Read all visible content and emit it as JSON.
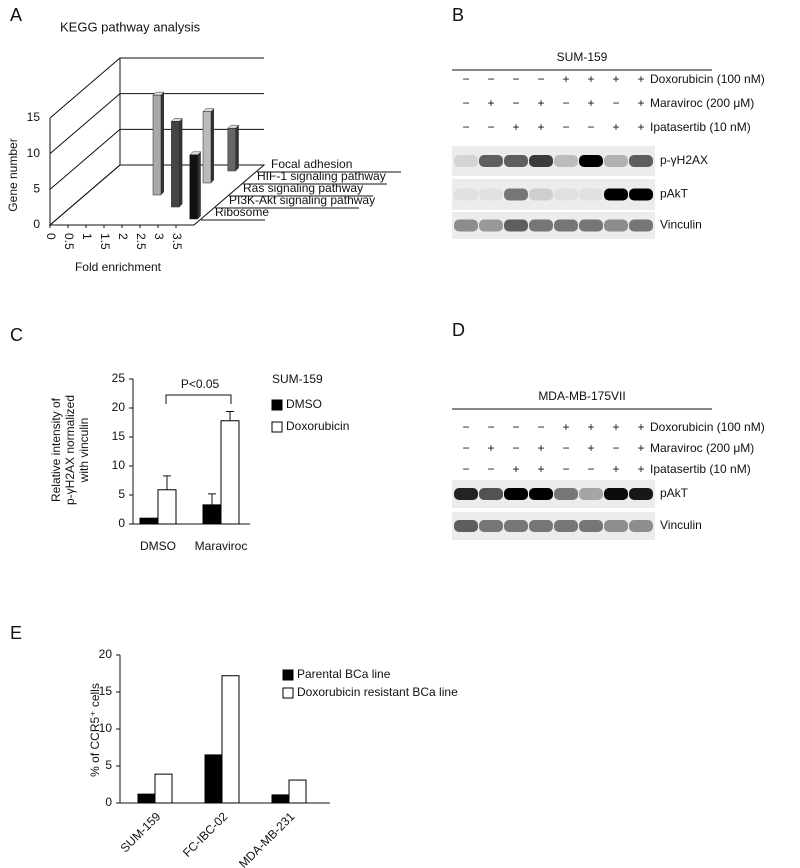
{
  "panel_labels": [
    "A",
    "B",
    "C",
    "D",
    "E"
  ],
  "chart_data": [
    {
      "type": "bar3d",
      "title": "KEGG pathway analysis",
      "x_label": "Fold enrichment",
      "y_label": "Gene number",
      "categories": [
        "Ribosome",
        "PI3K-Akt signaling pathway",
        "Ras signaling pathway",
        "HIF-1 signaling pathway",
        "Focal adhesion"
      ],
      "x": [
        3.8,
        2.9,
        2.0,
        3.0,
        3.3
      ],
      "values": [
        9,
        12,
        14,
        10,
        6
      ],
      "colors": [
        "#111111",
        "#444444",
        "#aaaaaa",
        "#bbbbbb",
        "#666666"
      ],
      "xlim": [
        0,
        4
      ],
      "xticks": [
        0,
        0.5,
        1,
        1.5,
        2,
        2.5,
        3,
        3.5
      ],
      "ylim": [
        0,
        15
      ],
      "yticks": [
        0,
        5,
        10,
        15
      ]
    },
    {
      "type": "bar",
      "y_label": [
        "Relative intensity of",
        "p-γH2AX normalized",
        "with vinculin"
      ],
      "legend_title": "SUM-159",
      "annotation": "P<0.05",
      "categories": [
        "DMSO",
        "Maraviroc"
      ],
      "series": [
        {
          "name": "DMSO",
          "color": "#000000",
          "values": [
            1,
            3.3
          ],
          "errors": [
            null,
            1.9
          ]
        },
        {
          "name": "Doxorubicin",
          "color": "#ffffff",
          "values": [
            5.9,
            17.8
          ],
          "errors": [
            2.4,
            1.6
          ]
        }
      ],
      "ylim": [
        0,
        25
      ],
      "yticks": [
        0,
        5,
        10,
        15,
        20,
        25
      ]
    },
    {
      "type": "bar",
      "y_label": "% of CCR5⁺ cells",
      "categories": [
        "SUM-159",
        "FC-IBC-02",
        "MDA-MB-231"
      ],
      "series": [
        {
          "name": "Parental BCa line",
          "color": "#000000",
          "values": [
            1.2,
            6.5,
            1.1
          ]
        },
        {
          "name": "Doxorubicin resistant BCa line",
          "color": "#ffffff",
          "values": [
            3.9,
            17.2,
            3.1
          ]
        }
      ],
      "ylim": [
        0,
        20
      ],
      "yticks": [
        0,
        5,
        10,
        15,
        20
      ]
    }
  ],
  "blots": [
    {
      "title": "SUM-159",
      "rows": [
        {
          "label": "Doxorubicin (100 nM)",
          "signs": [
            "−",
            "−",
            "−",
            "−",
            "+",
            "+",
            "+",
            "+"
          ]
        },
        {
          "label": "Maraviroc (200 μM)",
          "signs": [
            "−",
            "+",
            "−",
            "+",
            "−",
            "+",
            "−",
            "+"
          ]
        },
        {
          "label": "Ipatasertib (10 nM)",
          "signs": [
            "−",
            "−",
            "+",
            "+",
            "−",
            "−",
            "+",
            "+"
          ]
        }
      ],
      "bands": [
        "p-γH2AX",
        "pAkT",
        "Vinculin"
      ]
    },
    {
      "title": "MDA-MB-175VII",
      "rows": [
        {
          "label": "Doxorubicin (100 nM)",
          "signs": [
            "−",
            "−",
            "−",
            "−",
            "+",
            "+",
            "+",
            "+"
          ]
        },
        {
          "label": "Maraviroc (200 μM)",
          "signs": [
            "−",
            "+",
            "−",
            "+",
            "−",
            "+",
            "−",
            "+"
          ]
        },
        {
          "label": "Ipatasertib (10 nM)",
          "signs": [
            "−",
            "−",
            "+",
            "+",
            "−",
            "−",
            "+",
            "+"
          ]
        }
      ],
      "bands": [
        "pAkT",
        "Vinculin"
      ]
    }
  ]
}
